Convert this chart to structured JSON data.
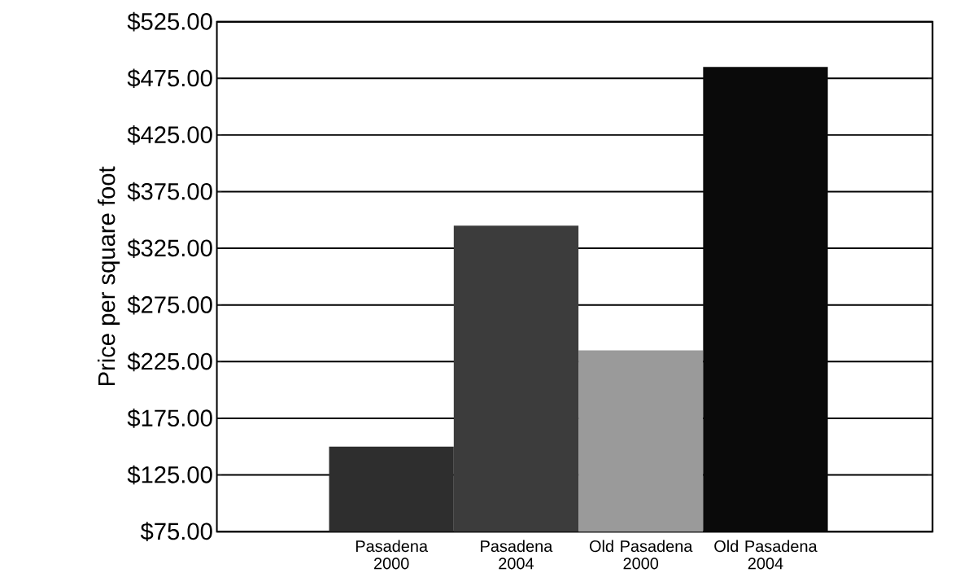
{
  "chart_data": {
    "type": "bar",
    "ylabel": "Price per square foot",
    "categories": [
      "Pasadena 2000",
      "Pasadena 2004",
      "Old Pasadena 2000",
      "Old Pasadena 2004"
    ],
    "values": [
      150,
      345,
      235,
      485
    ],
    "colors": [
      "#2e2e2e",
      "#3c3c3c",
      "#9a9a9a",
      "#0a0a0a"
    ],
    "ylim": [
      75,
      525
    ],
    "yticks": [
      {
        "value": 75,
        "label": "$75.00"
      },
      {
        "value": 125,
        "label": "$125.00"
      },
      {
        "value": 175,
        "label": "$175.00"
      },
      {
        "value": 225,
        "label": "$225.00"
      },
      {
        "value": 275,
        "label": "$275.00"
      },
      {
        "value": 325,
        "label": "$325.00"
      },
      {
        "value": 375,
        "label": "$375.00"
      },
      {
        "value": 425,
        "label": "$425.00"
      },
      {
        "value": 475,
        "label": "$475.00"
      },
      {
        "value": 525,
        "label": "$525.00"
      }
    ],
    "grid": "y"
  }
}
